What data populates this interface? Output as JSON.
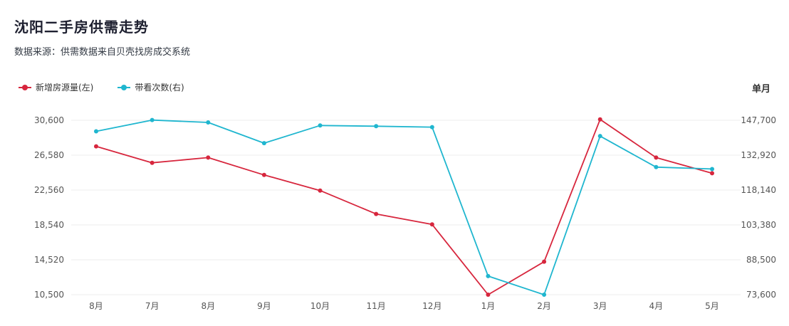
{
  "title": "沈阳二手房供需走势",
  "subtitle": "数据来源：供需数据来自贝壳找房成交系统",
  "colors": {
    "supply": "#d7263d",
    "demand": "#1fb6cf",
    "grid": "#eeeeee"
  },
  "chart_data": {
    "type": "line",
    "categories": [
      "8月",
      "7月",
      "8月",
      "9月",
      "10月",
      "11月",
      "12月",
      "1月",
      "2月",
      "3月",
      "4月",
      "5月"
    ],
    "left_axis": {
      "label": "",
      "ticks": [
        "10,500",
        "14,520",
        "18,540",
        "22,560",
        "26,580",
        "30,600"
      ],
      "range": [
        10500,
        30600
      ]
    },
    "right_axis": {
      "label": "单月",
      "ticks": [
        "73,600",
        "88,500",
        "103,380",
        "118,140",
        "132,920",
        "147,700"
      ],
      "range": [
        73600,
        147700
      ]
    },
    "series": [
      {
        "name": "新增房源量(左)",
        "axis": "left",
        "values": [
          27600,
          25700,
          26300,
          24300,
          22500,
          19800,
          18600,
          10500,
          14300,
          30700,
          26300,
          24500
        ]
      },
      {
        "name": "带看次数(右)",
        "axis": "right",
        "values": [
          143000,
          147800,
          146800,
          138000,
          145500,
          145200,
          144800,
          81500,
          73600,
          141000,
          127800,
          127000
        ]
      }
    ],
    "grid": true,
    "legend_position": "top-left"
  }
}
